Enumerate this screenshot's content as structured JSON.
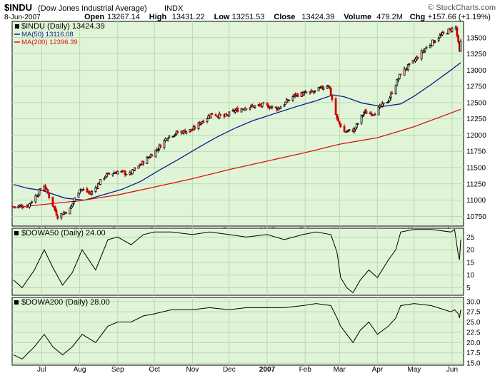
{
  "header": {
    "symbol": "$INDU",
    "name": "(Dow Jones Industrial Average)",
    "exchange": "INDX",
    "watermark": "© StockCharts.com",
    "date": "8-Jun-2007",
    "quote": [
      {
        "label": "Open",
        "value": "13267.14"
      },
      {
        "label": "High",
        "value": "13431.22"
      },
      {
        "label": "Low",
        "value": "13251.53"
      },
      {
        "label": "Close",
        "value": "13424.39"
      },
      {
        "label": "Volume",
        "value": "479.2M"
      },
      {
        "label": "Chg",
        "value": "+157.66 (+1.19%)"
      }
    ]
  },
  "colors": {
    "panel_bg": "#e0f5d8",
    "grid": "#b9d9b0",
    "up": "#000000",
    "down": "#cc0000",
    "ma50": "#0b1c8c",
    "ma200": "#dd1111",
    "line": "#000000"
  },
  "x_labels": [
    "Jul",
    "Aug",
    "Sep",
    "Oct",
    "Nov",
    "Dec",
    "2007",
    "Feb",
    "Mar",
    "Apr",
    "May",
    "Jun"
  ],
  "chart_data": [
    {
      "type": "line",
      "panel": "price",
      "legend": [
        {
          "text": "$INDU (Daily) 13424.39",
          "marker": "square",
          "color": "#000000"
        },
        {
          "text": "MA(50) 13116.08",
          "marker": "line",
          "color": "#0b1c8c"
        },
        {
          "text": "MA(200) 12396.39",
          "marker": "line",
          "color": "#dd1111"
        }
      ],
      "x_range": [
        "2006-06-08",
        "2007-06-08"
      ],
      "ylim": [
        10600,
        13750
      ],
      "y_ticks": [
        10750,
        11000,
        11250,
        11500,
        11750,
        12000,
        12250,
        12500,
        12750,
        13000,
        13250,
        13500
      ],
      "series": [
        {
          "name": "$INDU",
          "style": "candlestick",
          "points": [
            [
              "2006-06-08",
              10900
            ],
            [
              "2006-06-20",
              10920
            ],
            [
              "2006-07-03",
              11230
            ],
            [
              "2006-07-14",
              10750
            ],
            [
              "2006-07-24",
              10860
            ],
            [
              "2006-08-01",
              11180
            ],
            [
              "2006-08-10",
              11100
            ],
            [
              "2006-08-22",
              11380
            ],
            [
              "2006-09-01",
              11440
            ],
            [
              "2006-09-11",
              11400
            ],
            [
              "2006-09-25",
              11640
            ],
            [
              "2006-10-03",
              11780
            ],
            [
              "2006-10-12",
              11980
            ],
            [
              "2006-10-20",
              12040
            ],
            [
              "2006-11-01",
              12080
            ],
            [
              "2006-11-08",
              12200
            ],
            [
              "2006-11-17",
              12330
            ],
            [
              "2006-11-27",
              12280
            ],
            [
              "2006-12-05",
              12370
            ],
            [
              "2006-12-15",
              12430
            ],
            [
              "2006-12-29",
              12460
            ],
            [
              "2007-01-10",
              12410
            ],
            [
              "2007-01-24",
              12620
            ],
            [
              "2007-02-08",
              12660
            ],
            [
              "2007-02-20",
              12780
            ],
            [
              "2007-02-27",
              12240
            ],
            [
              "2007-03-05",
              12050
            ],
            [
              "2007-03-13",
              12080
            ],
            [
              "2007-03-21",
              12350
            ],
            [
              "2007-03-29",
              12340
            ],
            [
              "2007-04-10",
              12540
            ],
            [
              "2007-04-20",
              12950
            ],
            [
              "2007-04-30",
              13120
            ],
            [
              "2007-05-10",
              13330
            ],
            [
              "2007-05-20",
              13500
            ],
            [
              "2007-05-31",
              13630
            ],
            [
              "2007-06-04",
              13660
            ],
            [
              "2007-06-07",
              13270
            ],
            [
              "2007-06-08",
              13424
            ]
          ]
        },
        {
          "name": "MA(50)",
          "style": "line",
          "points": [
            [
              "2006-06-08",
              11240
            ],
            [
              "2006-06-20",
              11180
            ],
            [
              "2006-07-01",
              11150
            ],
            [
              "2006-07-20",
              11030
            ],
            [
              "2006-08-05",
              11000
            ],
            [
              "2006-08-20",
              11080
            ],
            [
              "2006-09-05",
              11170
            ],
            [
              "2006-09-20",
              11290
            ],
            [
              "2006-10-05",
              11460
            ],
            [
              "2006-10-20",
              11620
            ],
            [
              "2006-11-05",
              11800
            ],
            [
              "2006-11-20",
              11960
            ],
            [
              "2006-12-05",
              12100
            ],
            [
              "2006-12-20",
              12220
            ],
            [
              "2007-01-10",
              12350
            ],
            [
              "2007-01-25",
              12440
            ],
            [
              "2007-02-10",
              12530
            ],
            [
              "2007-02-24",
              12620
            ],
            [
              "2007-03-05",
              12590
            ],
            [
              "2007-03-20",
              12490
            ],
            [
              "2007-04-05",
              12440
            ],
            [
              "2007-04-20",
              12480
            ],
            [
              "2007-05-01",
              12600
            ],
            [
              "2007-05-15",
              12780
            ],
            [
              "2007-05-31",
              13000
            ],
            [
              "2007-06-08",
              13116
            ]
          ]
        },
        {
          "name": "MA(200)",
          "style": "line",
          "points": [
            [
              "2006-06-08",
              10880
            ],
            [
              "2006-07-01",
              10930
            ],
            [
              "2006-08-01",
              10990
            ],
            [
              "2006-09-01",
              11080
            ],
            [
              "2006-10-01",
              11200
            ],
            [
              "2006-11-01",
              11330
            ],
            [
              "2006-12-01",
              11470
            ],
            [
              "2007-01-01",
              11600
            ],
            [
              "2007-02-01",
              11730
            ],
            [
              "2007-03-01",
              11860
            ],
            [
              "2007-04-01",
              11960
            ],
            [
              "2007-05-01",
              12130
            ],
            [
              "2007-06-08",
              12396
            ]
          ]
        }
      ]
    },
    {
      "type": "line",
      "panel": "dowa50",
      "legend": [
        {
          "text": "$DOWA50 (Daily) 24.00"
        }
      ],
      "ylim": [
        2,
        28.5
      ],
      "y_ticks": [
        5,
        10,
        15,
        20,
        25
      ],
      "series": [
        {
          "name": "$DOWA50",
          "points": [
            [
              "2006-06-08",
              8
            ],
            [
              "2006-06-15",
              5
            ],
            [
              "2006-06-25",
              12
            ],
            [
              "2006-07-03",
              20
            ],
            [
              "2006-07-10",
              13
            ],
            [
              "2006-07-18",
              6
            ],
            [
              "2006-07-26",
              11
            ],
            [
              "2006-08-03",
              20
            ],
            [
              "2006-08-14",
              12
            ],
            [
              "2006-08-24",
              24
            ],
            [
              "2006-09-01",
              25
            ],
            [
              "2006-09-12",
              22
            ],
            [
              "2006-09-22",
              26
            ],
            [
              "2006-10-01",
              27
            ],
            [
              "2006-10-15",
              27
            ],
            [
              "2006-11-01",
              26
            ],
            [
              "2006-11-15",
              27
            ],
            [
              "2006-12-01",
              26
            ],
            [
              "2006-12-15",
              25
            ],
            [
              "2007-01-01",
              26
            ],
            [
              "2007-01-15",
              24
            ],
            [
              "2007-01-30",
              26
            ],
            [
              "2007-02-10",
              27
            ],
            [
              "2007-02-22",
              26
            ],
            [
              "2007-02-27",
              19
            ],
            [
              "2007-03-02",
              9
            ],
            [
              "2007-03-07",
              5
            ],
            [
              "2007-03-12",
              3
            ],
            [
              "2007-03-18",
              8
            ],
            [
              "2007-03-25",
              12
            ],
            [
              "2007-04-01",
              9
            ],
            [
              "2007-04-10",
              16
            ],
            [
              "2007-04-16",
              20
            ],
            [
              "2007-04-20",
              27
            ],
            [
              "2007-05-01",
              28
            ],
            [
              "2007-05-15",
              28
            ],
            [
              "2007-05-31",
              27
            ],
            [
              "2007-06-03",
              28
            ],
            [
              "2007-06-06",
              18
            ],
            [
              "2007-06-07",
              16
            ],
            [
              "2007-06-08",
              24
            ]
          ]
        }
      ]
    },
    {
      "type": "line",
      "panel": "dowa200",
      "legend": [
        {
          "text": "$DOWA200 (Daily) 28.00"
        }
      ],
      "ylim": [
        14.5,
        31
      ],
      "y_ticks": [
        15.0,
        17.5,
        20.0,
        22.5,
        25.0,
        27.5,
        30.0
      ],
      "series": [
        {
          "name": "$DOWA200",
          "points": [
            [
              "2006-06-08",
              17
            ],
            [
              "2006-06-15",
              16
            ],
            [
              "2006-06-25",
              19
            ],
            [
              "2006-07-03",
              22
            ],
            [
              "2006-07-10",
              19
            ],
            [
              "2006-07-18",
              17
            ],
            [
              "2006-07-26",
              19
            ],
            [
              "2006-08-03",
              22
            ],
            [
              "2006-08-14",
              20
            ],
            [
              "2006-08-24",
              24
            ],
            [
              "2006-09-01",
              25
            ],
            [
              "2006-09-12",
              25
            ],
            [
              "2006-09-22",
              26.5
            ],
            [
              "2006-10-01",
              27
            ],
            [
              "2006-10-15",
              28
            ],
            [
              "2006-11-01",
              28
            ],
            [
              "2006-11-15",
              28.5
            ],
            [
              "2006-12-01",
              28
            ],
            [
              "2006-12-15",
              28.5
            ],
            [
              "2007-01-01",
              28.5
            ],
            [
              "2007-01-15",
              28.5
            ],
            [
              "2007-01-30",
              29
            ],
            [
              "2007-02-10",
              29.5
            ],
            [
              "2007-02-22",
              29
            ],
            [
              "2007-02-27",
              26
            ],
            [
              "2007-03-02",
              24
            ],
            [
              "2007-03-07",
              22
            ],
            [
              "2007-03-12",
              20
            ],
            [
              "2007-03-18",
              23
            ],
            [
              "2007-03-25",
              25
            ],
            [
              "2007-04-01",
              22
            ],
            [
              "2007-04-10",
              24
            ],
            [
              "2007-04-16",
              26
            ],
            [
              "2007-04-20",
              29
            ],
            [
              "2007-05-01",
              29.5
            ],
            [
              "2007-05-15",
              29
            ],
            [
              "2007-05-31",
              27.5
            ],
            [
              "2007-06-03",
              28
            ],
            [
              "2007-06-06",
              27
            ],
            [
              "2007-06-07",
              26
            ],
            [
              "2007-06-08",
              28
            ]
          ]
        }
      ]
    }
  ]
}
